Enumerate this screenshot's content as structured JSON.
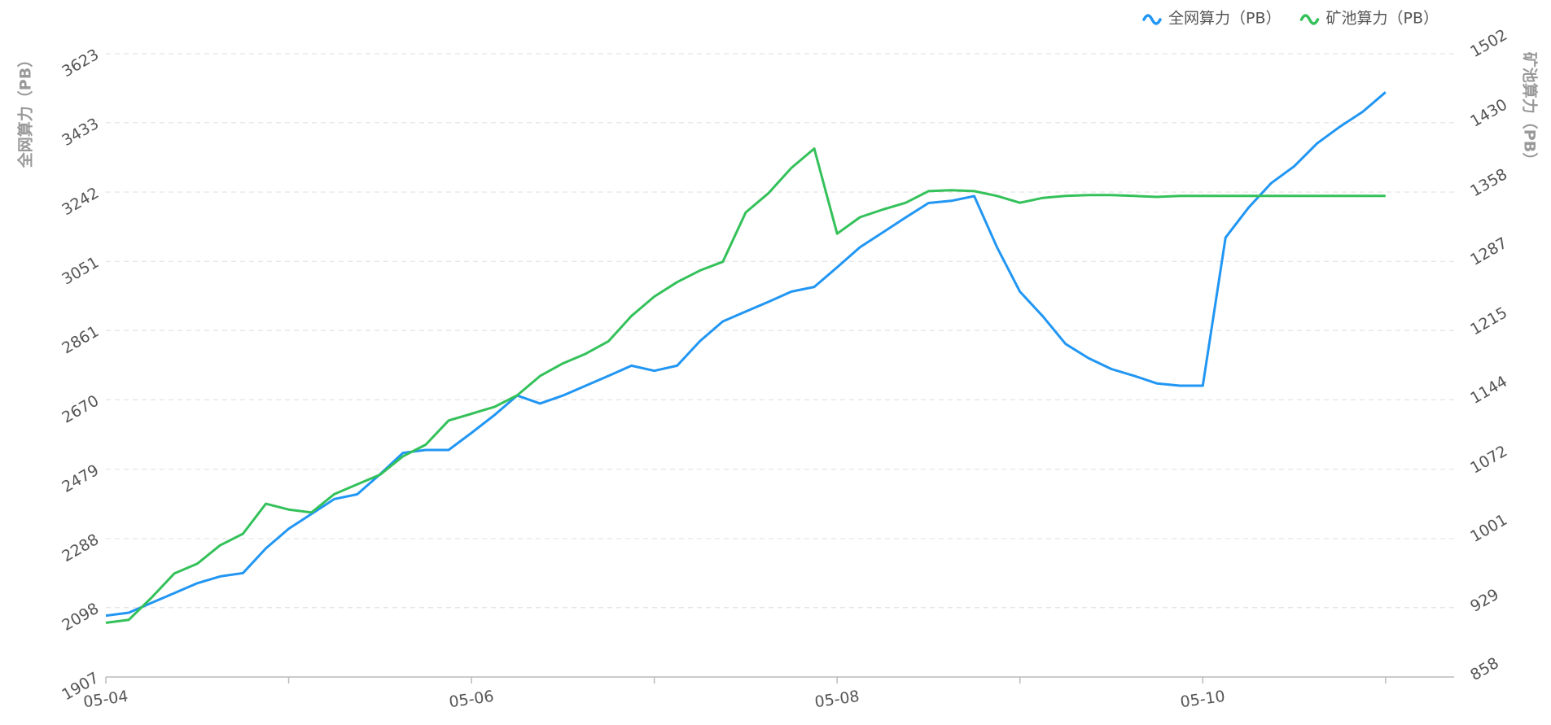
{
  "chart_data": {
    "type": "line",
    "ylabel": "全网算力（PB）",
    "y2label": "矿池算力（PB）",
    "categories": [
      "05-04",
      null,
      null,
      null,
      null,
      null,
      null,
      null,
      null,
      null,
      null,
      null,
      null,
      null,
      null,
      null,
      "05-06",
      null,
      null,
      null,
      null,
      null,
      null,
      null,
      null,
      null,
      null,
      null,
      null,
      null,
      null,
      null,
      "05-08",
      null,
      null,
      null,
      null,
      null,
      null,
      null,
      null,
      null,
      null,
      null,
      null,
      null,
      null,
      null,
      "05-10",
      null,
      null,
      null,
      null,
      null,
      null,
      null,
      null,
      null,
      null,
      null
    ],
    "series": [
      {
        "name": "全网算力（PB）",
        "color": "#2196f3",
        "axis": "y",
        "values": [
          2076,
          2084,
          2111,
          2138,
          2165,
          2184,
          2193,
          2261,
          2315,
          2356,
          2397,
          2410,
          2465,
          2524,
          2532,
          2532,
          2579,
          2628,
          2682,
          2660,
          2682,
          2709,
          2736,
          2764,
          2750,
          2764,
          2832,
          2886,
          2913,
          2940,
          2968,
          2981,
          3035,
          3090,
          3131,
          3172,
          3212,
          3218,
          3231,
          3090,
          2968,
          2900,
          2824,
          2785,
          2755,
          2736,
          2715,
          2709,
          2709,
          3117,
          3199,
          3267,
          3313,
          3376,
          3422,
          3463,
          3517,
          null,
          null,
          null
        ]
      },
      {
        "name": "矿池算力（PB）",
        "color": "#34c15a",
        "axis": "y2",
        "values": [
          914,
          917,
          940,
          965,
          975,
          994,
          1006,
          1037,
          1031,
          1028,
          1047,
          1057,
          1067,
          1086,
          1098,
          1123,
          1130,
          1137,
          1149,
          1169,
          1182,
          1192,
          1205,
          1231,
          1251,
          1266,
          1278,
          1287,
          1338,
          1358,
          1384,
          1404,
          1316,
          1333,
          1341,
          1348,
          1360,
          1361,
          1360,
          1355,
          1348,
          1353,
          1355,
          1356,
          1356,
          1355,
          1354,
          1355,
          1355,
          1355,
          1355,
          1355,
          1355,
          1355,
          1355,
          1355,
          1355,
          null,
          null,
          null
        ]
      }
    ],
    "ylim": [
      1907,
      3623
    ],
    "yticks": [
      1907,
      2098,
      2288,
      2479,
      2670,
      2861,
      3051,
      3242,
      3433,
      3623
    ],
    "y2lim": [
      858,
      1502
    ],
    "y2ticks": [
      858,
      929,
      1001,
      1072,
      1144,
      1215,
      1287,
      1358,
      1430,
      1502
    ],
    "grid": true,
    "legend": "top-right"
  }
}
